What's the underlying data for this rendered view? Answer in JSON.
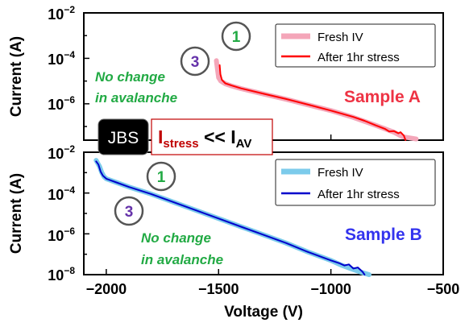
{
  "figure": {
    "xlabel": "Voltage (V)",
    "x_ticks": [
      {
        "value": -2000,
        "label": "−2000"
      },
      {
        "value": -1500,
        "label": "−1500"
      },
      {
        "value": -1000,
        "label": "−1000"
      },
      {
        "value": -500,
        "label": "−500"
      }
    ],
    "jbs_label": "JBS",
    "stress_main": "I",
    "stress_sub": "stress",
    "stress_mid": " << I",
    "stress_sub2": "AV",
    "colors": {
      "red_frame": "#c00000",
      "red_text": "#c00000"
    }
  },
  "chart_data": [
    {
      "type": "line",
      "ylabel": "Current (A)",
      "xlim": [
        -2100,
        -500
      ],
      "ylim_log10": [
        -7.6,
        -2
      ],
      "yscale": "log",
      "y_ticks": [
        {
          "exp": -2,
          "base": "10",
          "sup": "−2"
        },
        {
          "exp": -4,
          "base": "10",
          "sup": "−4"
        },
        {
          "exp": -6,
          "base": "10",
          "sup": "−6"
        }
      ],
      "legend_position": "top-right",
      "series": [
        {
          "name": "Fresh IV",
          "color": "#f4a6b9",
          "width": 6,
          "points": [
            [
              -1510,
              -4.1
            ],
            [
              -1505,
              -4.5
            ],
            [
              -1500,
              -4.85
            ],
            [
              -1490,
              -5.0
            ],
            [
              -1470,
              -5.12
            ],
            [
              -1440,
              -5.22
            ],
            [
              -1400,
              -5.33
            ],
            [
              -1300,
              -5.57
            ],
            [
              -1200,
              -5.8
            ],
            [
              -1100,
              -6.05
            ],
            [
              -1000,
              -6.3
            ],
            [
              -900,
              -6.6
            ],
            [
              -800,
              -6.95
            ],
            [
              -720,
              -7.25
            ],
            [
              -680,
              -7.45
            ],
            [
              -650,
              -7.5
            ],
            [
              -620,
              -7.55
            ]
          ]
        },
        {
          "name": "After 1hr stress",
          "color": "#ff0000",
          "width": 2,
          "points": [
            [
              -1495,
              -4.3
            ],
            [
              -1492,
              -4.7
            ],
            [
              -1485,
              -4.95
            ],
            [
              -1470,
              -5.1
            ],
            [
              -1440,
              -5.2
            ],
            [
              -1400,
              -5.32
            ],
            [
              -1300,
              -5.56
            ],
            [
              -1200,
              -5.79
            ],
            [
              -1100,
              -6.04
            ],
            [
              -1000,
              -6.3
            ],
            [
              -900,
              -6.58
            ],
            [
              -850,
              -6.75
            ],
            [
              -800,
              -6.95
            ],
            [
              -760,
              -7.1
            ],
            [
              -740,
              -7.22
            ],
            [
              -720,
              -7.2
            ],
            [
              -700,
              -7.3
            ],
            [
              -690,
              -7.25
            ],
            [
              -675,
              -7.4
            ],
            [
              -668,
              -7.6
            ]
          ]
        }
      ],
      "annotations": {
        "marker1": "1",
        "marker3": "3",
        "note_line1": "No change",
        "note_line2": "in avalanche",
        "sample": "Sample A"
      },
      "colors": {
        "note": "#22aa44",
        "sample": "#ee3344",
        "marker1": "#22aa44",
        "marker3": "#6633aa"
      }
    },
    {
      "type": "line",
      "ylabel": "Current (A)",
      "xlim": [
        -2100,
        -500
      ],
      "ylim_log10": [
        -8,
        -2
      ],
      "yscale": "log",
      "y_ticks": [
        {
          "exp": -2,
          "base": "10",
          "sup": "−2"
        },
        {
          "exp": -4,
          "base": "10",
          "sup": "−4"
        },
        {
          "exp": -6,
          "base": "10",
          "sup": "−6"
        },
        {
          "exp": -8,
          "base": "10",
          "sup": "−8"
        }
      ],
      "legend_position": "top-right",
      "series": [
        {
          "name": "Fresh IV",
          "color": "#7ccbeb",
          "width": 6,
          "points": [
            [
              -2045,
              -2.4
            ],
            [
              -2030,
              -2.7
            ],
            [
              -2020,
              -3.0
            ],
            [
              -2010,
              -3.2
            ],
            [
              -2000,
              -3.3
            ],
            [
              -1950,
              -3.5
            ],
            [
              -1900,
              -3.7
            ],
            [
              -1800,
              -4.05
            ],
            [
              -1700,
              -4.45
            ],
            [
              -1600,
              -4.85
            ],
            [
              -1500,
              -5.25
            ],
            [
              -1400,
              -5.65
            ],
            [
              -1300,
              -6.05
            ],
            [
              -1200,
              -6.45
            ],
            [
              -1100,
              -6.9
            ],
            [
              -1000,
              -7.3
            ],
            [
              -950,
              -7.55
            ],
            [
              -900,
              -7.75
            ],
            [
              -860,
              -7.9
            ],
            [
              -830,
              -8.0
            ]
          ]
        },
        {
          "name": "After 1hr stress",
          "color": "#0000cc",
          "width": 2,
          "points": [
            [
              -2045,
              -2.45
            ],
            [
              -2035,
              -2.6
            ],
            [
              -2025,
              -2.95
            ],
            [
              -2015,
              -3.15
            ],
            [
              -2000,
              -3.3
            ],
            [
              -1950,
              -3.5
            ],
            [
              -1900,
              -3.7
            ],
            [
              -1800,
              -4.05
            ],
            [
              -1700,
              -4.45
            ],
            [
              -1600,
              -4.85
            ],
            [
              -1500,
              -5.25
            ],
            [
              -1400,
              -5.65
            ],
            [
              -1300,
              -6.05
            ],
            [
              -1200,
              -6.45
            ],
            [
              -1100,
              -6.9
            ],
            [
              -1000,
              -7.3
            ],
            [
              -960,
              -7.45
            ],
            [
              -940,
              -7.55
            ],
            [
              -920,
              -7.5
            ],
            [
              -900,
              -7.7
            ],
            [
              -880,
              -7.65
            ],
            [
              -860,
              -7.85
            ],
            [
              -850,
              -8.0
            ]
          ]
        }
      ],
      "annotations": {
        "marker1": "1",
        "marker3": "3",
        "note_line1": "No change",
        "note_line2": "in avalanche",
        "sample": "Sample B"
      },
      "colors": {
        "note": "#22aa44",
        "sample": "#3333ee",
        "marker1": "#22aa44",
        "marker3": "#6633aa"
      }
    }
  ]
}
